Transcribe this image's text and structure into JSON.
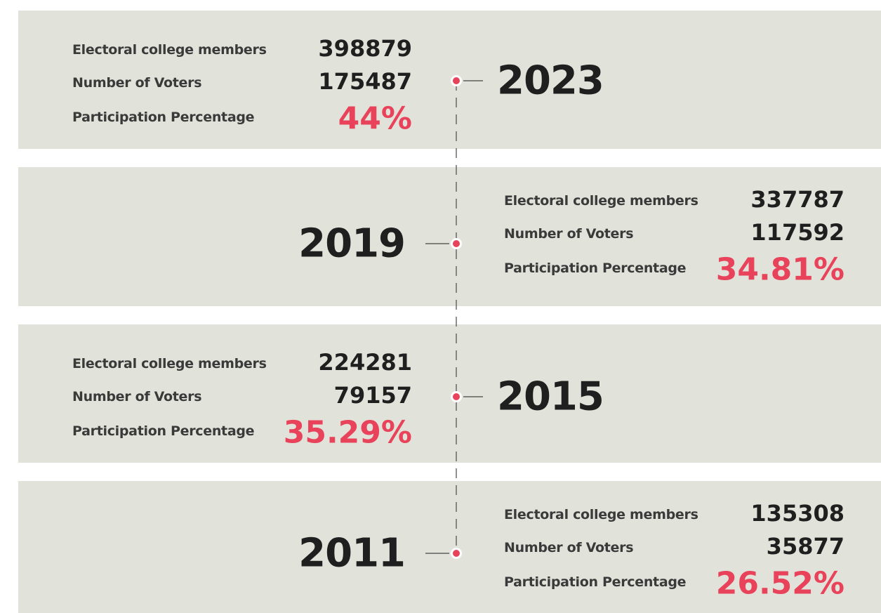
{
  "entries": [
    {
      "year": "2023",
      "rows": [
        {
          "label": "Electoral college members",
          "value": "398879"
        },
        {
          "label": "Number of Voters",
          "value": "175487"
        },
        {
          "label": "Participation Percentage",
          "value": "44%"
        }
      ]
    },
    {
      "year": "2019",
      "rows": [
        {
          "label": "Electoral college members",
          "value": "337787"
        },
        {
          "label": "Number of Voters",
          "value": "117592"
        },
        {
          "label": "Participation Percentage",
          "value": "34.81%"
        }
      ]
    },
    {
      "year": "2015",
      "rows": [
        {
          "label": "Electoral college members",
          "value": "224281"
        },
        {
          "label": "Number of Voters",
          "value": "79157"
        },
        {
          "label": "Participation Percentage",
          "value": "35.29%"
        }
      ]
    },
    {
      "year": "2011",
      "rows": [
        {
          "label": "Electoral college members",
          "value": "135308"
        },
        {
          "label": "Number of Voters",
          "value": "35877"
        },
        {
          "label": "Participation Percentage",
          "value": "26.52%"
        }
      ]
    }
  ]
}
